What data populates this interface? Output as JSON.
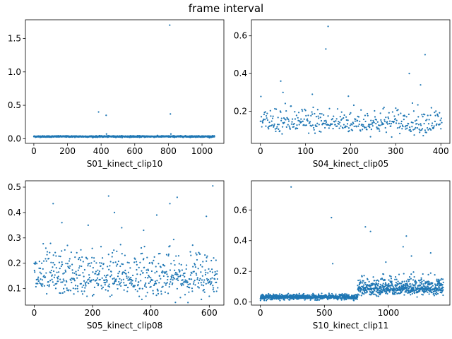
{
  "figure": {
    "suptitle": "frame interval"
  },
  "colors": {
    "marker": "#1f77b4",
    "axes": "#000000",
    "background": "#ffffff"
  },
  "chart_data": [
    {
      "type": "scatter",
      "xlabel": "S01_kinect_clip10",
      "xlim": [
        -50,
        1130
      ],
      "ylim": [
        -0.07,
        1.78
      ],
      "xticks": [
        0,
        200,
        400,
        600,
        800,
        1000
      ],
      "yticks": [
        0.0,
        0.5,
        1.0,
        1.5
      ],
      "ytick_labels": [
        "0.0",
        "0.5",
        "1.0",
        "1.5"
      ],
      "n_points": 1075,
      "baseline_mean": 0.033,
      "baseline_spread": 0.005,
      "outliers": [
        [
          385,
          0.4
        ],
        [
          430,
          0.35
        ],
        [
          432,
          0.07
        ],
        [
          808,
          1.7
        ],
        [
          812,
          0.37
        ],
        [
          815,
          0.07
        ]
      ]
    },
    {
      "type": "scatter",
      "xlabel": "S04_kinect_clip05",
      "xlim": [
        -20,
        420
      ],
      "ylim": [
        0.03,
        0.685
      ],
      "xticks": [
        0,
        100,
        200,
        300,
        400
      ],
      "yticks": [
        0.2,
        0.4,
        0.6
      ],
      "ytick_labels": [
        "0.2",
        "0.4",
        "0.6"
      ],
      "n_points": 403,
      "baseline_mean": 0.135,
      "baseline_spread": 0.035,
      "outliers": [
        [
          150,
          0.65
        ],
        [
          145,
          0.53
        ],
        [
          365,
          0.5
        ],
        [
          330,
          0.4
        ],
        [
          45,
          0.36
        ],
        [
          355,
          0.34
        ],
        [
          50,
          0.3
        ],
        [
          115,
          0.29
        ],
        [
          195,
          0.28
        ]
      ]
    },
    {
      "type": "scatter",
      "xlabel": "S05_kinect_clip08",
      "xlim": [
        -30,
        650
      ],
      "ylim": [
        0.035,
        0.525
      ],
      "xticks": [
        0,
        200,
        400,
        600
      ],
      "yticks": [
        0.1,
        0.2,
        0.3,
        0.4,
        0.5
      ],
      "ytick_labels": [
        "0.1",
        "0.2",
        "0.3",
        "0.4",
        "0.5"
      ],
      "n_points": 630,
      "baseline_mean": 0.14,
      "baseline_spread": 0.045,
      "outliers": [
        [
          612,
          0.505
        ],
        [
          255,
          0.465
        ],
        [
          490,
          0.46
        ],
        [
          465,
          0.435
        ],
        [
          65,
          0.435
        ],
        [
          275,
          0.4
        ],
        [
          420,
          0.39
        ],
        [
          590,
          0.385
        ],
        [
          95,
          0.36
        ],
        [
          185,
          0.35
        ],
        [
          300,
          0.34
        ],
        [
          375,
          0.33
        ]
      ]
    },
    {
      "type": "scatter",
      "xlabel": "S10_kinect_clip11",
      "xlim": [
        -70,
        1480
      ],
      "ylim": [
        -0.02,
        0.79
      ],
      "xticks": [
        0,
        500,
        1000
      ],
      "yticks": [
        0.0,
        0.2,
        0.4,
        0.6
      ],
      "ytick_labels": [
        "0.0",
        "0.2",
        "0.4",
        "0.6"
      ],
      "n_points": 1430,
      "segments": [
        {
          "x_start": 0,
          "x_end": 760,
          "mean": 0.033,
          "spread": 0.008
        },
        {
          "x_start": 760,
          "x_end": 1430,
          "mean": 0.09,
          "spread": 0.035
        }
      ],
      "outliers": [
        [
          240,
          0.75
        ],
        [
          555,
          0.55
        ],
        [
          820,
          0.49
        ],
        [
          860,
          0.46
        ],
        [
          1140,
          0.43
        ],
        [
          1115,
          0.36
        ],
        [
          1330,
          0.32
        ],
        [
          1180,
          0.3
        ],
        [
          565,
          0.25
        ],
        [
          980,
          0.26
        ]
      ]
    }
  ]
}
